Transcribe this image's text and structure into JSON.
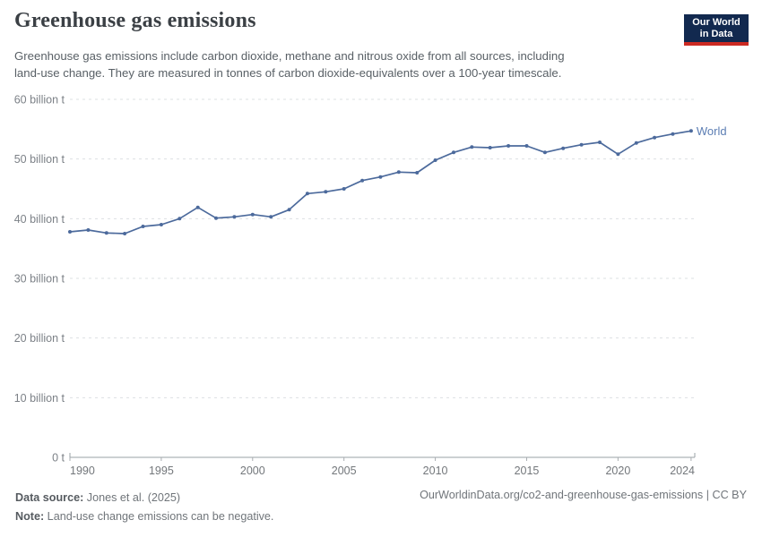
{
  "header": {
    "title": "Greenhouse gas emissions",
    "subtitle_lines": [
      "Greenhouse gas emissions include carbon dioxide, methane and nitrous oxide from all sources, including",
      "land-use change. They are measured in tonnes of carbon dioxide-equivalents over a 100-year timescale."
    ],
    "logo": {
      "line1": "Our World",
      "line2": "in Data",
      "bg_color": "#12294f",
      "accent_color": "#cc2a22"
    }
  },
  "chart_data": {
    "type": "line",
    "title": "Greenhouse gas emissions",
    "unit": "billion t",
    "xlim": [
      1990,
      2024
    ],
    "ylim": [
      0,
      60
    ],
    "grid": "horizontal-dashed",
    "legend": "series-end-label",
    "x_ticks": [
      1990,
      1995,
      2000,
      2005,
      2010,
      2015,
      2020,
      2024
    ],
    "y_ticks": [
      {
        "value": 0,
        "label": "0 t"
      },
      {
        "value": 10,
        "label": "10 billion t"
      },
      {
        "value": 20,
        "label": "20 billion t"
      },
      {
        "value": 30,
        "label": "30 billion t"
      },
      {
        "value": 40,
        "label": "40 billion t"
      },
      {
        "value": 50,
        "label": "50 billion t"
      },
      {
        "value": 60,
        "label": "60 billion t"
      }
    ],
    "series": [
      {
        "name": "World",
        "color": "#4c6a9c",
        "label_color": "#5b7db3",
        "years": [
          1990,
          1991,
          1992,
          1993,
          1994,
          1995,
          1996,
          1997,
          1998,
          1999,
          2000,
          2001,
          2002,
          2003,
          2004,
          2005,
          2006,
          2007,
          2008,
          2009,
          2010,
          2011,
          2012,
          2013,
          2014,
          2015,
          2016,
          2017,
          2018,
          2019,
          2020,
          2021,
          2022,
          2023,
          2024
        ],
        "values": [
          37.8,
          38.1,
          37.6,
          37.5,
          38.7,
          39.0,
          40.0,
          41.9,
          40.1,
          40.3,
          40.7,
          40.3,
          41.5,
          44.2,
          44.5,
          45.0,
          46.4,
          47.0,
          47.8,
          47.7,
          49.8,
          51.1,
          52.0,
          51.9,
          52.2,
          52.2,
          51.1,
          51.8,
          52.4,
          52.8,
          50.8,
          52.7,
          53.6,
          54.2,
          54.7
        ]
      }
    ],
    "style": {
      "grid_color": "#dde0e3",
      "axis_color": "#9aa0a5",
      "tick_color": "#a9adb1",
      "y_label_color": "#7c8187",
      "x_label_color": "#73777b"
    }
  },
  "footer": {
    "datasource_label": "Data source:",
    "datasource_value": " Jones et al. (2025)",
    "note_label": "Note:",
    "note_value": " Land-use change emissions can be negative.",
    "link": "OurWorldinData.org/co2-and-greenhouse-gas-emissions | CC BY"
  }
}
